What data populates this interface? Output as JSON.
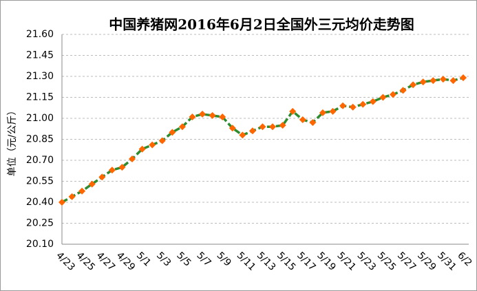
{
  "chart_data": {
    "type": "line",
    "title": "中国养猪网2016年6月2日全国外三元均价走势图",
    "y_label": "单位（元/公斤）",
    "categories": [
      "4/23",
      null,
      "4/25",
      null,
      "4/27",
      null,
      "4/29",
      null,
      "5/1",
      null,
      "5/3",
      null,
      "5/5",
      null,
      "5/7",
      null,
      "5/9",
      null,
      "5/11",
      null,
      "5/13",
      null,
      "5/15",
      null,
      "5/17",
      null,
      "5/19",
      null,
      "5/21",
      null,
      "5/23",
      null,
      "5/25",
      null,
      "5/27",
      null,
      "5/29",
      null,
      "5/31",
      null,
      "6/2"
    ],
    "series": [
      {
        "name": "外三元均价",
        "color": "#2e8b2e",
        "marker_color": "#ff6600",
        "values": [
          20.4,
          20.44,
          20.48,
          20.53,
          20.58,
          20.63,
          20.65,
          20.71,
          20.78,
          20.81,
          20.84,
          20.9,
          20.94,
          21.01,
          21.03,
          21.02,
          21.01,
          20.93,
          20.88,
          20.91,
          20.94,
          20.94,
          20.95,
          21.05,
          20.99,
          20.97,
          21.04,
          21.05,
          21.09,
          21.08,
          21.1,
          21.12,
          21.15,
          21.17,
          21.2,
          21.24,
          21.26,
          21.27,
          21.28,
          21.27,
          21.29
        ]
      }
    ],
    "ylim": [
      20.1,
      21.6
    ],
    "yticks": [
      {
        "value": 20.1,
        "label": "20.10"
      },
      {
        "value": 20.25,
        "label": "20.25"
      },
      {
        "value": 20.4,
        "label": "20.40"
      },
      {
        "value": 20.55,
        "label": "20.55"
      },
      {
        "value": 20.7,
        "label": "20.70"
      },
      {
        "value": 20.85,
        "label": "20.85"
      },
      {
        "value": 21.0,
        "label": "21.00"
      },
      {
        "value": 21.15,
        "label": "21.15"
      },
      {
        "value": 21.3,
        "label": "21.30"
      },
      {
        "value": 21.45,
        "label": "21.45"
      },
      {
        "value": 21.6,
        "label": "21.60"
      }
    ],
    "grid": true
  }
}
